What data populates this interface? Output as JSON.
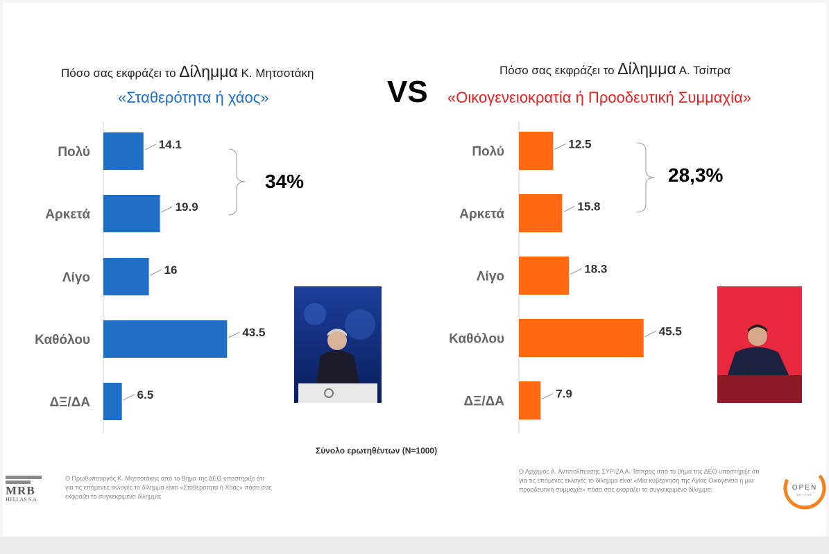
{
  "left": {
    "title_pre": "Πόσο σας εκφράζει το ",
    "title_big": "Δίλημμα",
    "title_post": " Κ. Μητσοτάκη",
    "subtitle": "«Σταθερότητα ή χάος»",
    "aggregate": "34%",
    "footnote": "Ο Πρωθυπουργός Κ. Μητσοτάκης από το Βήμα της ΔΕΘ υποστήριξε ότι για τις επόμενες εκλογές το δίλημμα είναι «Σταθερότητα ή Χάος» πόσο σας εκφράζει το συγκεκριμένο δίλημμα;"
  },
  "right": {
    "title_pre": "Πόσο σας εκφράζει το ",
    "title_big": "Δίλημμα",
    "title_post": " Α. Τσίπρα",
    "subtitle": "«Οικογενειοκρατία ή Προοδευτική Συμμαχία»",
    "aggregate": "28,3%",
    "footnote": "Ο Αρχηγός Α. Αντιπολίτευσης ΣΥΡΙΖΑ Α. Τσίπρας από το βήμα της ΔΕΘ υποστήριξε ότι για τις επόμενες εκλογές το δίλημμα είναι «Μια κυβέρνηση της Αγίας Οικογένεια ή μια προοδευτική συμμαχία» πόσο σας εκφράζει το συγκεκριμένο δίλημμα;"
  },
  "vs": "VS",
  "base_note": "Σύνολο ερωτηθέντων (N=1000)",
  "logos": {
    "mrb": "MRB",
    "mrb_sub": "HELLAS S.A.",
    "open": "OPEN",
    "open_sub": "BEYOND"
  },
  "colors": {
    "left_bar": "#1f6fc6",
    "right_bar": "#ff6a13",
    "left_subtitle": "#1f6fc6",
    "right_subtitle": "#e32020"
  },
  "chart_data": [
    {
      "type": "bar",
      "orientation": "horizontal",
      "categories": [
        "Πολύ",
        "Αρκετά",
        "Λίγο",
        "Καθόλου",
        "ΔΞ/ΔΑ"
      ],
      "values": [
        14.1,
        19.9,
        16,
        43.5,
        6.5
      ],
      "value_labels": [
        "14.1",
        "19.9",
        "16",
        "43.5",
        "6.5"
      ],
      "color": "#1f6fc6",
      "xlim": [
        0,
        50
      ],
      "grid": false,
      "legend": "none"
    },
    {
      "type": "bar",
      "orientation": "horizontal",
      "categories": [
        "Πολύ",
        "Αρκετά",
        "Λίγο",
        "Καθόλου",
        "ΔΞ/ΔΑ"
      ],
      "values": [
        12.5,
        15.8,
        18.3,
        45.5,
        7.9
      ],
      "value_labels": [
        "12.5",
        "15.8",
        "18.3",
        "45.5",
        "7.9"
      ],
      "color": "#ff6a13",
      "xlim": [
        0,
        50
      ],
      "grid": false,
      "legend": "none"
    }
  ]
}
